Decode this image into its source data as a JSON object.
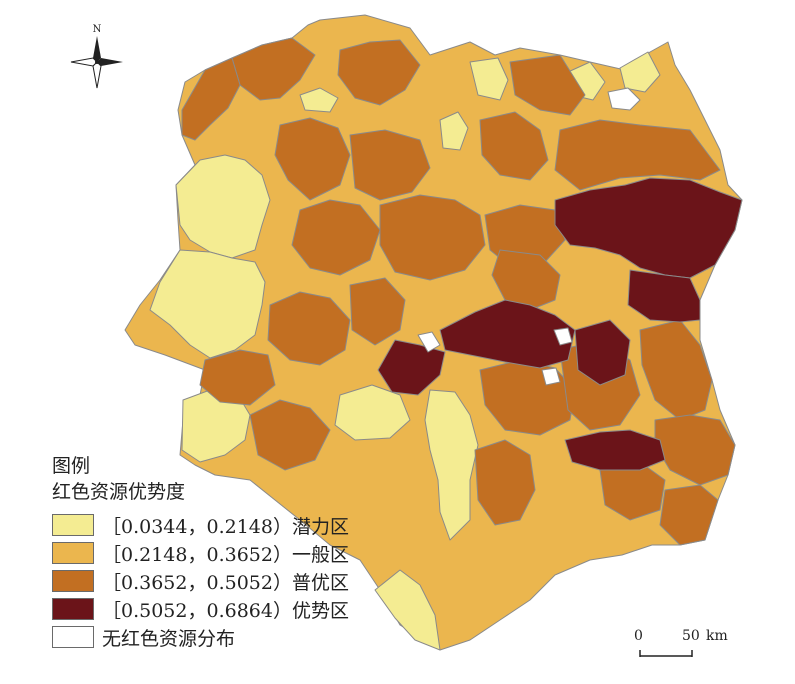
{
  "compass": {
    "north_label": "N",
    "icon": "north-arrow-compass-icon"
  },
  "legend": {
    "title": "图例",
    "subtitle": "红色资源优势度",
    "items": [
      {
        "label": "［0.0344，0.2148）潜力区",
        "color": "#f4ec92",
        "class_name": "潜力区"
      },
      {
        "label": "［0.2148，0.3652）一般区",
        "color": "#ebb64e",
        "class_name": "一般区"
      },
      {
        "label": "［0.3652，0.5052）普优区",
        "color": "#c26f22",
        "class_name": "普优区"
      },
      {
        "label": "［0.5052，0.6864）优势区",
        "color": "#6b1419",
        "class_name": "优势区"
      },
      {
        "label": "无红色资源分布",
        "color": "#ffffff",
        "class_name": "无红色资源分布"
      }
    ]
  },
  "scale_bar": {
    "start_label": "0",
    "end_label": "50",
    "unit": "km"
  },
  "colors": {
    "potential": "#f4ec92",
    "general": "#ebb64e",
    "good": "#c26f22",
    "dominant": "#6b1419",
    "none": "#ffffff",
    "border": "#8a8a8a"
  }
}
